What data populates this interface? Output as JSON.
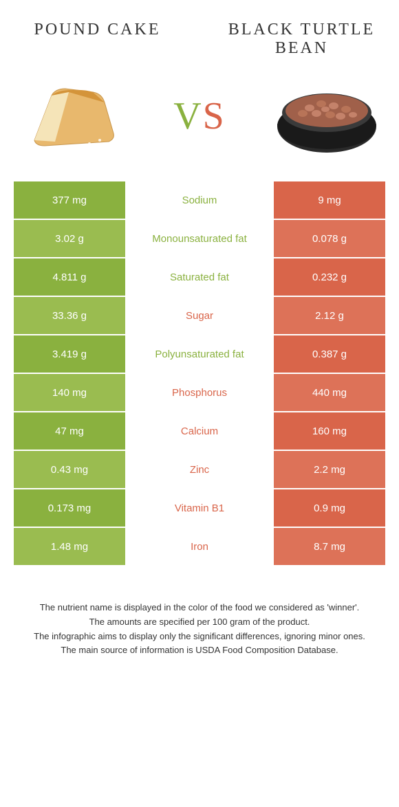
{
  "food_left": "Pound cake",
  "food_right": "Black turtle bean",
  "vs": "VS",
  "colors": {
    "green": "#8ab13f",
    "green_alt": "#9abc50",
    "orange": "#d9654a",
    "orange_alt": "#dd7258"
  },
  "rows": [
    {
      "left": "377 mg",
      "label": "Sodium",
      "right": "9 mg",
      "winner": "left"
    },
    {
      "left": "3.02 g",
      "label": "Monounsaturated fat",
      "right": "0.078 g",
      "winner": "left"
    },
    {
      "left": "4.811 g",
      "label": "Saturated fat",
      "right": "0.232 g",
      "winner": "left"
    },
    {
      "left": "33.36 g",
      "label": "Sugar",
      "right": "2.12 g",
      "winner": "right"
    },
    {
      "left": "3.419 g",
      "label": "Polyunsaturated fat",
      "right": "0.387 g",
      "winner": "left"
    },
    {
      "left": "140 mg",
      "label": "Phosphorus",
      "right": "440 mg",
      "winner": "right"
    },
    {
      "left": "47 mg",
      "label": "Calcium",
      "right": "160 mg",
      "winner": "right"
    },
    {
      "left": "0.43 mg",
      "label": "Zinc",
      "right": "2.2 mg",
      "winner": "right"
    },
    {
      "left": "0.173 mg",
      "label": "Vitamin B1",
      "right": "0.9 mg",
      "winner": "right"
    },
    {
      "left": "1.48 mg",
      "label": "Iron",
      "right": "8.7 mg",
      "winner": "right"
    }
  ],
  "footer": {
    "line1": "The nutrient name is displayed in the color of the food we considered as 'winner'.",
    "line2": "The amounts are specified per 100 gram of the product.",
    "line3": "The infographic aims to display only the significant differences, ignoring minor ones.",
    "line4": "The main source of information is USDA Food Composition Database."
  }
}
